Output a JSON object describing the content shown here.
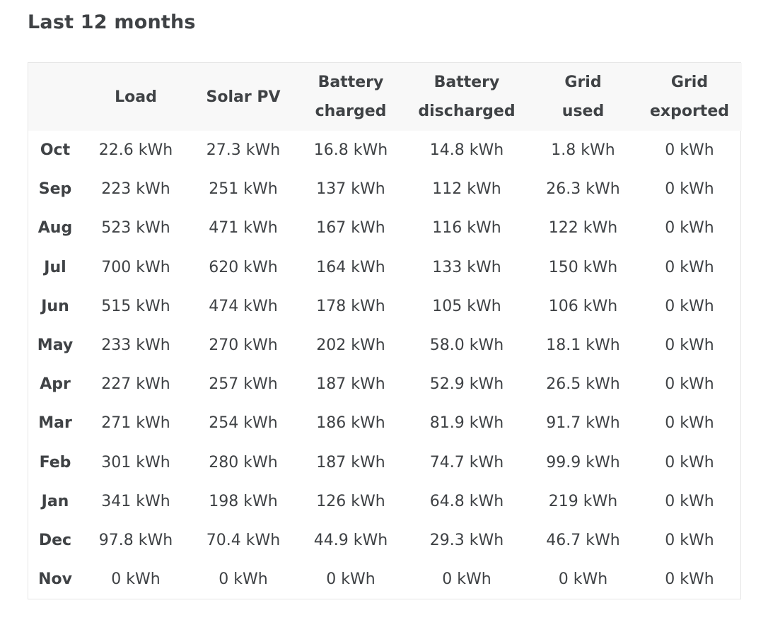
{
  "title": "Last 12 months",
  "table": {
    "headers": [
      {
        "line1": "",
        "line2": ""
      },
      {
        "line1": "Load",
        "line2": ""
      },
      {
        "line1": "Solar PV",
        "line2": ""
      },
      {
        "line1": "Battery",
        "line2": "charged"
      },
      {
        "line1": "Battery",
        "line2": "discharged"
      },
      {
        "line1": "Grid",
        "line2": "used"
      },
      {
        "line1": "Grid",
        "line2": "exported"
      }
    ],
    "rows": [
      {
        "month": "Oct",
        "load": "22.6 kWh",
        "solar": "27.3 kWh",
        "battery_charged": "16.8 kWh",
        "battery_discharged": "14.8 kWh",
        "grid_used": "1.8 kWh",
        "grid_exported": "0 kWh"
      },
      {
        "month": "Sep",
        "load": "223 kWh",
        "solar": "251 kWh",
        "battery_charged": "137 kWh",
        "battery_discharged": "112 kWh",
        "grid_used": "26.3 kWh",
        "grid_exported": "0 kWh"
      },
      {
        "month": "Aug",
        "load": "523 kWh",
        "solar": "471 kWh",
        "battery_charged": "167 kWh",
        "battery_discharged": "116 kWh",
        "grid_used": "122 kWh",
        "grid_exported": "0 kWh"
      },
      {
        "month": "Jul",
        "load": "700 kWh",
        "solar": "620 kWh",
        "battery_charged": "164 kWh",
        "battery_discharged": "133 kWh",
        "grid_used": "150 kWh",
        "grid_exported": "0 kWh"
      },
      {
        "month": "Jun",
        "load": "515 kWh",
        "solar": "474 kWh",
        "battery_charged": "178 kWh",
        "battery_discharged": "105 kWh",
        "grid_used": "106 kWh",
        "grid_exported": "0 kWh"
      },
      {
        "month": "May",
        "load": "233 kWh",
        "solar": "270 kWh",
        "battery_charged": "202 kWh",
        "battery_discharged": "58.0 kWh",
        "grid_used": "18.1 kWh",
        "grid_exported": "0 kWh"
      },
      {
        "month": "Apr",
        "load": "227 kWh",
        "solar": "257 kWh",
        "battery_charged": "187 kWh",
        "battery_discharged": "52.9 kWh",
        "grid_used": "26.5 kWh",
        "grid_exported": "0 kWh"
      },
      {
        "month": "Mar",
        "load": "271 kWh",
        "solar": "254 kWh",
        "battery_charged": "186 kWh",
        "battery_discharged": "81.9 kWh",
        "grid_used": "91.7 kWh",
        "grid_exported": "0 kWh"
      },
      {
        "month": "Feb",
        "load": "301 kWh",
        "solar": "280 kWh",
        "battery_charged": "187 kWh",
        "battery_discharged": "74.7 kWh",
        "grid_used": "99.9 kWh",
        "grid_exported": "0 kWh"
      },
      {
        "month": "Jan",
        "load": "341 kWh",
        "solar": "198 kWh",
        "battery_charged": "126 kWh",
        "battery_discharged": "64.8 kWh",
        "grid_used": "219 kWh",
        "grid_exported": "0 kWh"
      },
      {
        "month": "Dec",
        "load": "97.8 kWh",
        "solar": "70.4 kWh",
        "battery_charged": "44.9 kWh",
        "battery_discharged": "29.3 kWh",
        "grid_used": "46.7 kWh",
        "grid_exported": "0 kWh"
      },
      {
        "month": "Nov",
        "load": "0 kWh",
        "solar": "0 kWh",
        "battery_charged": "0 kWh",
        "battery_discharged": "0 kWh",
        "grid_used": "0 kWh",
        "grid_exported": "0 kWh"
      }
    ]
  },
  "colors": {
    "text": "#3f4245",
    "header_bg": "#f8f8f8",
    "border": "#e6e6e6"
  }
}
